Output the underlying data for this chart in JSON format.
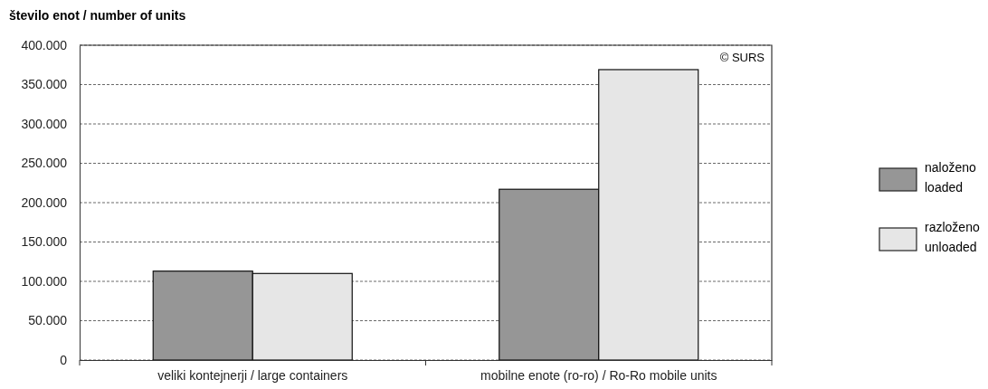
{
  "chart_data": {
    "type": "bar",
    "title": "število enot / number of units",
    "categories": [
      "veliki kontejnerji / large containers",
      "mobilne enote (ro-ro) / Ro-Ro mobile units"
    ],
    "series": [
      {
        "name": "naloženo\nloaded",
        "color": "#969696",
        "values": [
          113000,
          217000
        ]
      },
      {
        "name": "razloženo\nunloaded",
        "color": "#e6e6e6",
        "values": [
          110000,
          369000
        ]
      }
    ],
    "ylim": [
      0,
      400000
    ],
    "yticks": [
      {
        "value": 0,
        "label": "0"
      },
      {
        "value": 50000,
        "label": "50.000"
      },
      {
        "value": 100000,
        "label": "100.000"
      },
      {
        "value": 150000,
        "label": "150.000"
      },
      {
        "value": 200000,
        "label": "200.000"
      },
      {
        "value": 250000,
        "label": "250.000"
      },
      {
        "value": 300000,
        "label": "300.000"
      },
      {
        "value": 350000,
        "label": "350.000"
      },
      {
        "value": 400000,
        "label": "400.000"
      }
    ],
    "grid": "y",
    "legend": "right",
    "annotations": [
      "© SURS"
    ]
  }
}
